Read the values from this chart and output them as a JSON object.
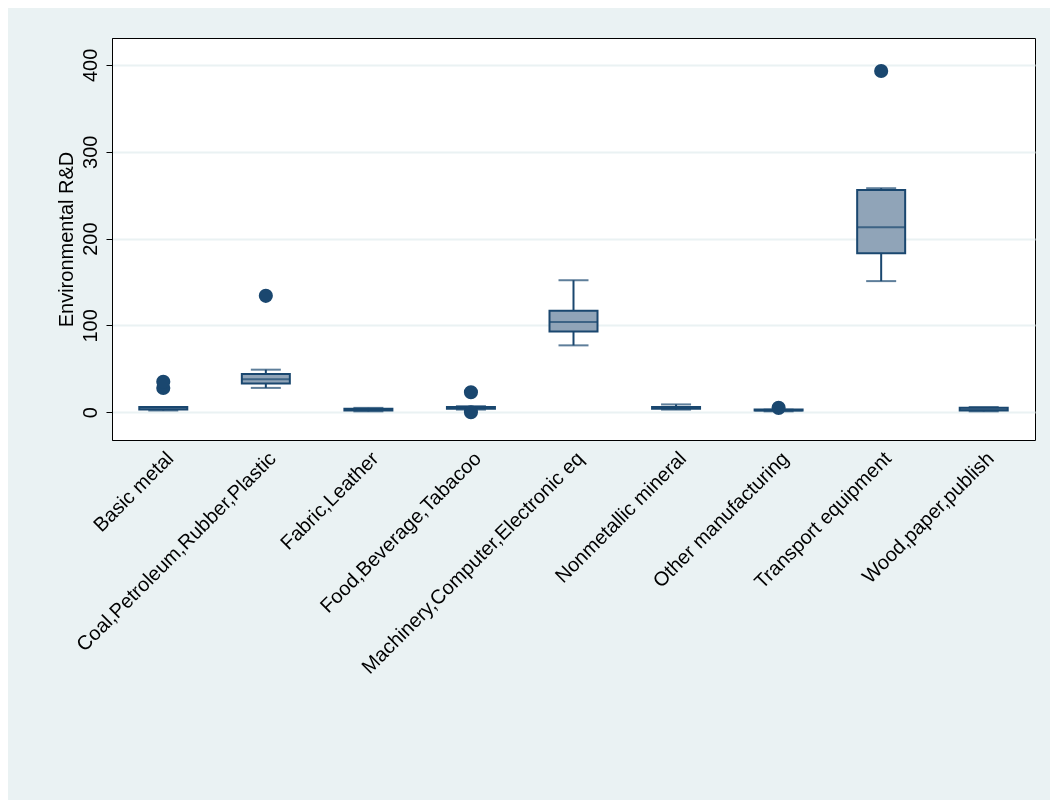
{
  "chart_data": {
    "type": "box",
    "ylabel": "Environmental R&D",
    "color": "#90a4b8",
    "categories": [
      "Basic metal",
      "Coal,Petroleum,Rubber,Plastic",
      "Fabric,Leather",
      "Food,Beverage,Tabacoo",
      "Machinery,Computer,Electronic eq",
      "Nonmetallic mineral",
      "Other manufacturing",
      "Transport equipment",
      "Wood,paper,publish"
    ],
    "boxes": [
      {
        "low": 2,
        "q1": 3,
        "median": 5,
        "q3": 6,
        "high": 6,
        "outliers": [
          28,
          35
        ]
      },
      {
        "low": 28,
        "q1": 33,
        "median": 38,
        "q3": 44,
        "high": 49,
        "outliers": [
          134
        ]
      },
      {
        "low": 1,
        "q1": 2,
        "median": 3,
        "q3": 4,
        "high": 5
      },
      {
        "low": 3,
        "q1": 4,
        "median": 5,
        "q3": 6,
        "high": 7,
        "outliers": [
          0,
          23
        ]
      },
      {
        "low": 77,
        "q1": 93,
        "median": 104,
        "q3": 117,
        "high": 152
      },
      {
        "low": 3,
        "q1": 4,
        "median": 5,
        "q3": 6,
        "high": 9
      },
      {
        "low": 1,
        "q1": 2,
        "median": 2,
        "q3": 3,
        "high": 3,
        "outliers": [
          5
        ]
      },
      {
        "low": 151,
        "q1": 183,
        "median": 213,
        "q3": 256,
        "high": 258,
        "outliers": [
          393
        ]
      },
      {
        "low": 1,
        "q1": 2,
        "median": 3,
        "q3": 5,
        "high": 6
      }
    ],
    "ylim": [
      -32,
      431
    ],
    "yticks": [
      0,
      100,
      200,
      300,
      400
    ],
    "grid": "y"
  }
}
